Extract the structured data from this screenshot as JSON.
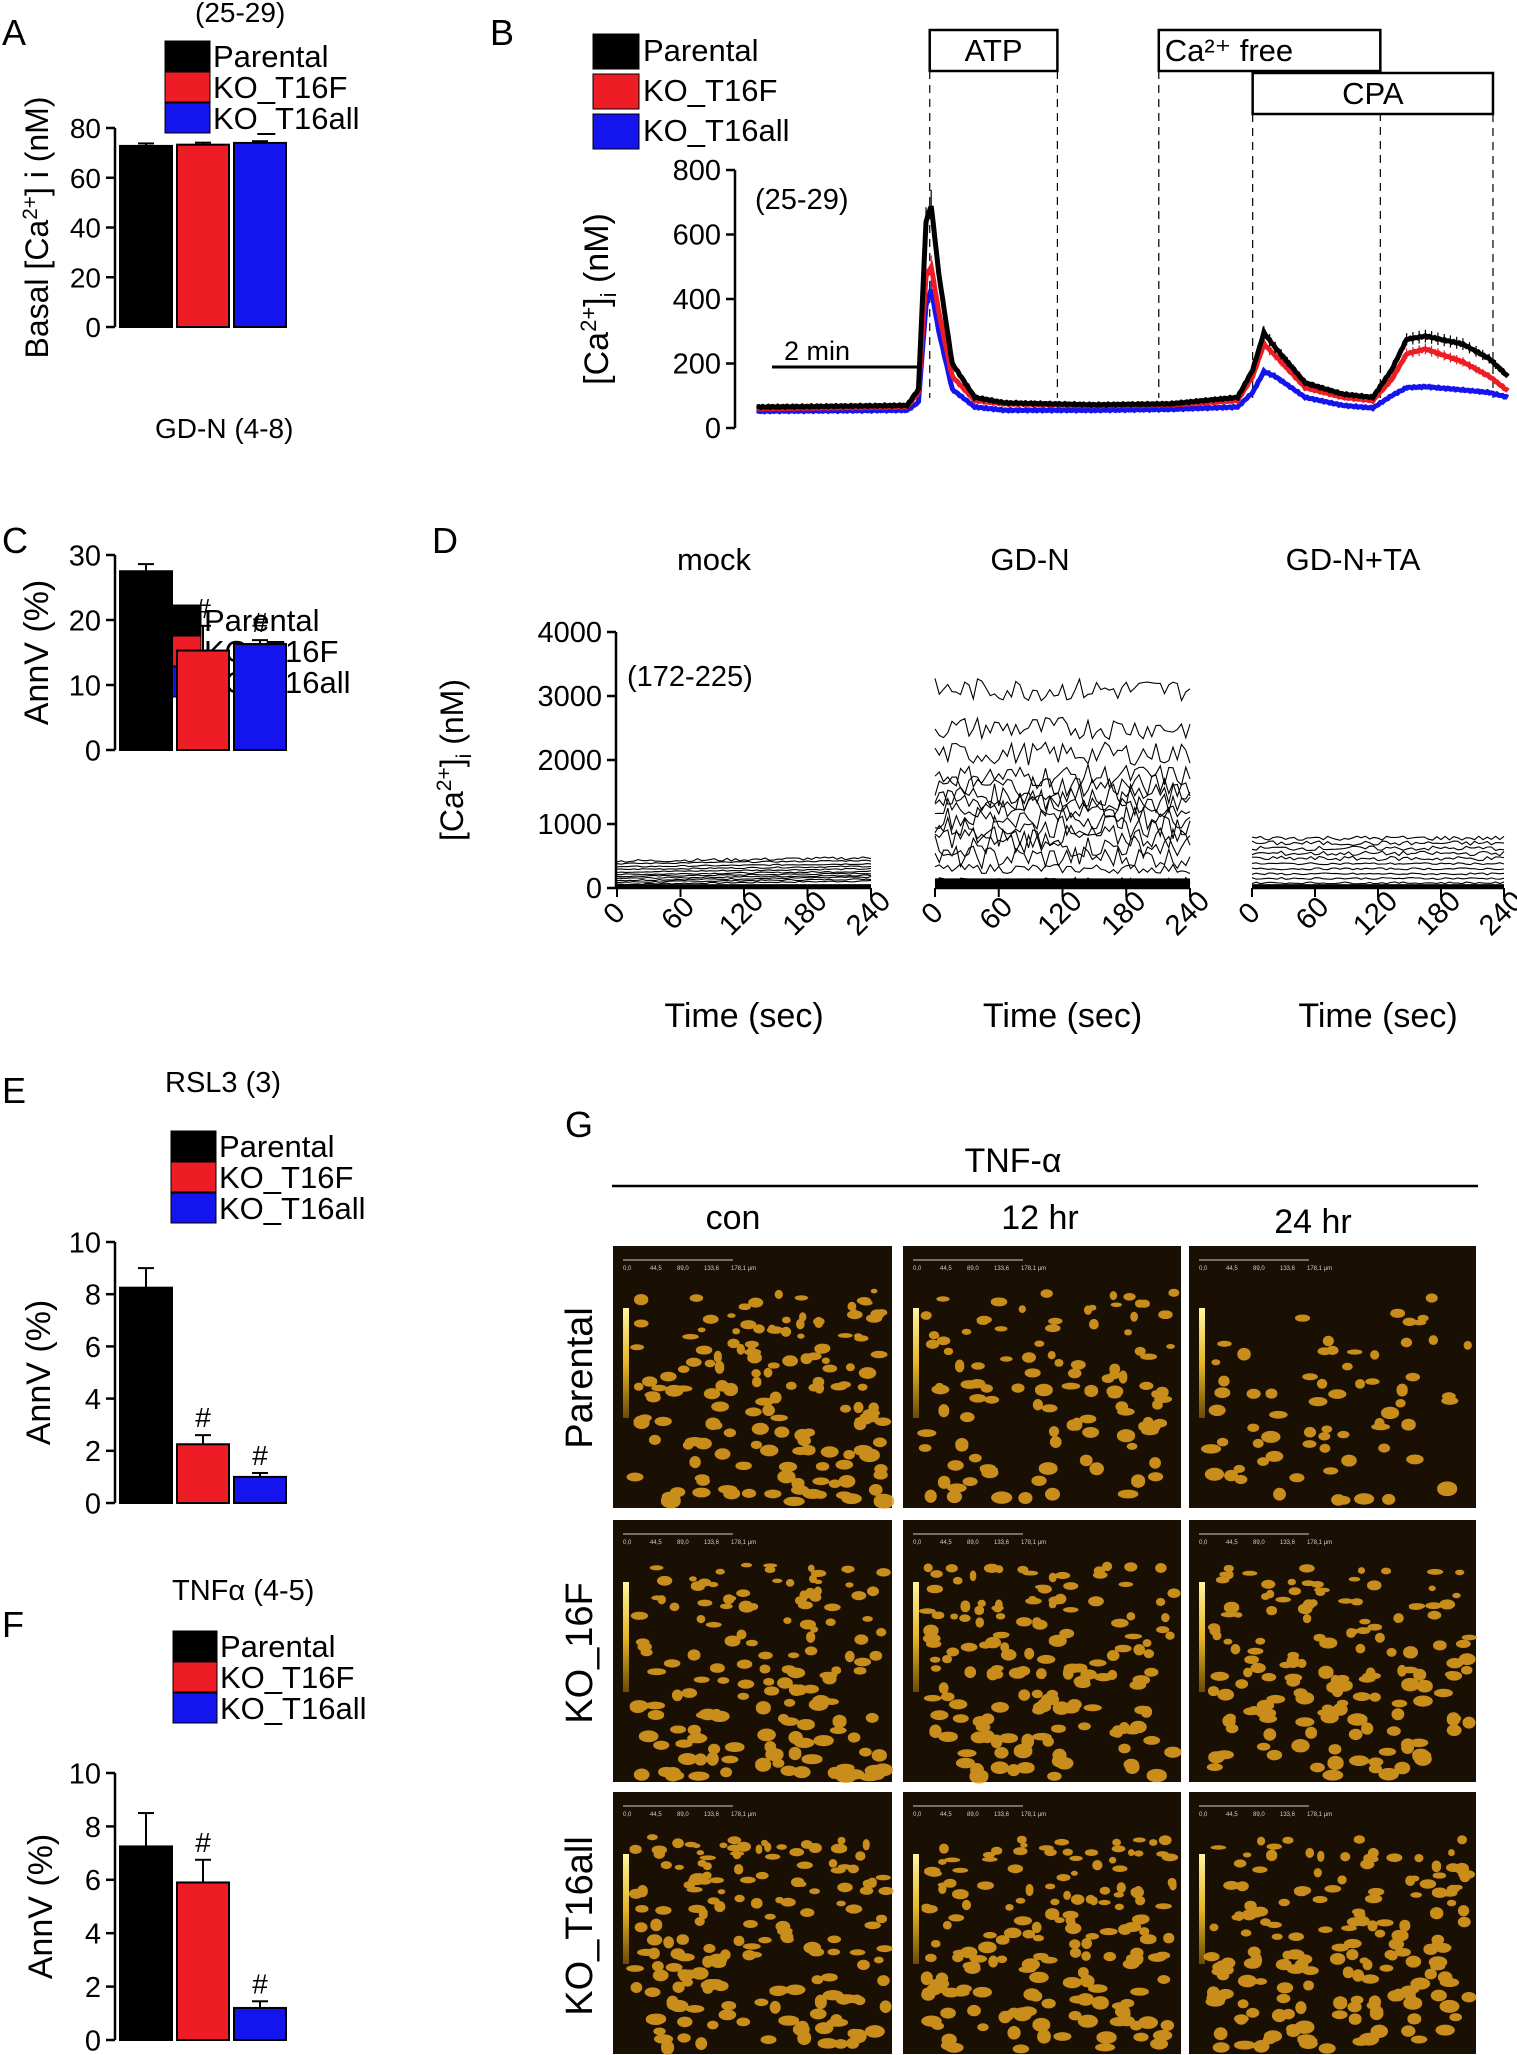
{
  "colors": {
    "parental": "#000000",
    "ko_t16f": "#ee1c25",
    "ko_t16all": "#1414ee",
    "cell_dark": "#1a0f03",
    "cell_bright": "#e8a320",
    "colorbar_top": "#fff6a0",
    "colorbar_bottom": "#6b4a05"
  },
  "chart_data": [
    {
      "panel": "A",
      "type": "bar",
      "n_label": "(25-29)",
      "categories": [
        "Parental",
        "KO_T16F",
        "KO_T16all"
      ],
      "values": [
        72.8,
        73.3,
        74.0
      ],
      "errors": [
        1.0,
        0.8,
        0.7
      ],
      "ylabel": "Basal [Ca2+] i (nM)",
      "ylim": [
        0,
        80
      ],
      "yticks": [
        "0",
        "20",
        "40",
        "60",
        "80"
      ],
      "legend": [
        "Parental",
        "KO_T16F",
        "KO_T16all"
      ],
      "significance": [
        "",
        "",
        ""
      ]
    },
    {
      "panel": "B",
      "type": "line",
      "n_label": "(25-29)",
      "ylabel": "[Ca2+]i (nM)",
      "ylim": [
        0,
        800
      ],
      "yticks": [
        "0",
        "200",
        "400",
        "600",
        "800"
      ],
      "time_range_min": [
        0,
        10
      ],
      "scale_bar": "2 min",
      "scale_bar_minutes": 2,
      "legend": [
        "Parental",
        "KO_T16F",
        "KO_T16all"
      ],
      "annotations": [
        {
          "label": "ATP",
          "start_min": 2.3,
          "end_min": 4.0
        },
        {
          "label": "Ca²⁺ free",
          "start_min": 5.35,
          "end_min": 8.3
        },
        {
          "label": "CPA",
          "start_min": 6.6,
          "end_min": 9.8
        }
      ],
      "series": [
        {
          "name": "Parental",
          "points": [
            [
              0,
              65
            ],
            [
              2.0,
              70
            ],
            [
              2.15,
              120
            ],
            [
              2.25,
              640
            ],
            [
              2.32,
              690
            ],
            [
              2.42,
              480
            ],
            [
              2.6,
              200
            ],
            [
              2.9,
              95
            ],
            [
              3.3,
              78
            ],
            [
              4.5,
              72
            ],
            [
              5.5,
              75
            ],
            [
              6.4,
              95
            ],
            [
              6.6,
              180
            ],
            [
              6.75,
              295
            ],
            [
              6.9,
              250
            ],
            [
              7.3,
              140
            ],
            [
              7.8,
              105
            ],
            [
              8.2,
              95
            ],
            [
              8.45,
              180
            ],
            [
              8.65,
              275
            ],
            [
              8.9,
              285
            ],
            [
              9.4,
              260
            ],
            [
              9.75,
              215
            ],
            [
              10,
              160
            ]
          ]
        },
        {
          "name": "KO_T16F",
          "points": [
            [
              0,
              60
            ],
            [
              2.0,
              66
            ],
            [
              2.15,
              110
            ],
            [
              2.25,
              470
            ],
            [
              2.32,
              500
            ],
            [
              2.42,
              360
            ],
            [
              2.6,
              160
            ],
            [
              2.9,
              85
            ],
            [
              3.3,
              75
            ],
            [
              4.5,
              70
            ],
            [
              5.5,
              72
            ],
            [
              6.4,
              85
            ],
            [
              6.6,
              160
            ],
            [
              6.75,
              260
            ],
            [
              6.9,
              225
            ],
            [
              7.3,
              125
            ],
            [
              7.8,
              95
            ],
            [
              8.2,
              85
            ],
            [
              8.45,
              150
            ],
            [
              8.65,
              230
            ],
            [
              8.9,
              245
            ],
            [
              9.4,
              205
            ],
            [
              9.75,
              160
            ],
            [
              10,
              115
            ]
          ]
        },
        {
          "name": "KO_T16all",
          "points": [
            [
              0,
              52
            ],
            [
              2.0,
              55
            ],
            [
              2.15,
              80
            ],
            [
              2.25,
              380
            ],
            [
              2.32,
              430
            ],
            [
              2.42,
              300
            ],
            [
              2.6,
              120
            ],
            [
              2.9,
              65
            ],
            [
              3.3,
              55
            ],
            [
              4.5,
              55
            ],
            [
              5.5,
              58
            ],
            [
              6.4,
              65
            ],
            [
              6.6,
              110
            ],
            [
              6.75,
              175
            ],
            [
              6.9,
              160
            ],
            [
              7.3,
              95
            ],
            [
              7.8,
              70
            ],
            [
              8.2,
              62
            ],
            [
              8.45,
              100
            ],
            [
              8.65,
              125
            ],
            [
              8.9,
              128
            ],
            [
              9.4,
              118
            ],
            [
              9.75,
              110
            ],
            [
              10,
              95
            ]
          ]
        }
      ]
    },
    {
      "panel": "C",
      "type": "bar",
      "title": "GD-N (4-8)",
      "categories": [
        "Parental",
        "KO_T16F",
        "KO_T16all"
      ],
      "values": [
        27.5,
        15.3,
        16.3
      ],
      "errors": [
        1.1,
        3.8,
        0.6
      ],
      "ylabel": "AnnV  (%)",
      "ylim": [
        0,
        30
      ],
      "yticks": [
        "0",
        "10",
        "20",
        "30"
      ],
      "legend": [
        "Parental",
        "KO_T16F",
        "KO_T16all"
      ],
      "significance": [
        "",
        "#",
        "#"
      ]
    },
    {
      "panel": "D",
      "type": "line",
      "n_label": "(172-225)",
      "ylabel": "[Ca2+]i (nM)",
      "xlabel": "Time (sec)",
      "ylim": [
        0,
        4000
      ],
      "yticks": [
        "0",
        "1000",
        "2000",
        "3000",
        "4000"
      ],
      "xticks": [
        "0",
        "60",
        "120",
        "180",
        "240"
      ],
      "subplots": [
        {
          "title": "mock",
          "trace_levels": [
            60,
            90,
            120,
            150,
            180,
            210,
            250,
            290,
            330,
            380,
            420
          ],
          "noise": 40
        },
        {
          "title": "GD-N",
          "trace_levels": [
            30,
            60,
            90,
            300,
            480,
            650,
            800,
            950,
            1100,
            1250,
            1350,
            1450,
            1600,
            1750,
            2100,
            2500,
            3100
          ],
          "noise": 300
        },
        {
          "title": "GD-N+TA",
          "trace_levels": [
            80,
            150,
            220,
            300,
            380,
            460,
            540,
            620,
            700,
            780
          ],
          "noise": 60
        }
      ]
    },
    {
      "panel": "E",
      "type": "bar",
      "title": "RSL3 (3)",
      "categories": [
        "Parental",
        "KO_T16F",
        "KO_T16all"
      ],
      "values": [
        8.25,
        2.25,
        1.0
      ],
      "errors": [
        0.75,
        0.35,
        0.15
      ],
      "ylabel": "AnnV (%)",
      "ylim": [
        0,
        10
      ],
      "yticks": [
        "0",
        "2",
        "4",
        "6",
        "8",
        "10"
      ],
      "legend": [
        "Parental",
        "KO_T16F",
        "KO_T16all"
      ],
      "significance": [
        "",
        "#",
        "#"
      ]
    },
    {
      "panel": "F",
      "type": "bar",
      "title": "TNFα (4-5)",
      "categories": [
        "Parental",
        "KO_T16F",
        "KO_T16all"
      ],
      "values": [
        7.25,
        5.9,
        1.2
      ],
      "errors": [
        1.25,
        0.85,
        0.25
      ],
      "ylabel": "AnnV  (%)",
      "ylim": [
        0,
        10
      ],
      "yticks": [
        "0",
        "2",
        "4",
        "6",
        "8",
        "10"
      ],
      "legend": [
        "Parental",
        "KO_T16F",
        "KO_T16all"
      ],
      "significance": [
        "",
        "#",
        "#"
      ]
    }
  ],
  "panel_g": {
    "letter": "G",
    "header": "TNF-α",
    "columns": [
      "con",
      "12 hr",
      "24 hr"
    ],
    "rows": [
      "Parental",
      "KO_16F",
      "KO_T16all"
    ],
    "scale_labels": [
      "0,0",
      "44,5",
      "89,0",
      "133,6",
      "178,1 µm"
    ],
    "cell_density": [
      [
        0.8,
        0.55,
        0.35
      ],
      [
        0.8,
        0.8,
        0.8
      ],
      [
        0.9,
        0.9,
        0.9
      ]
    ]
  }
}
